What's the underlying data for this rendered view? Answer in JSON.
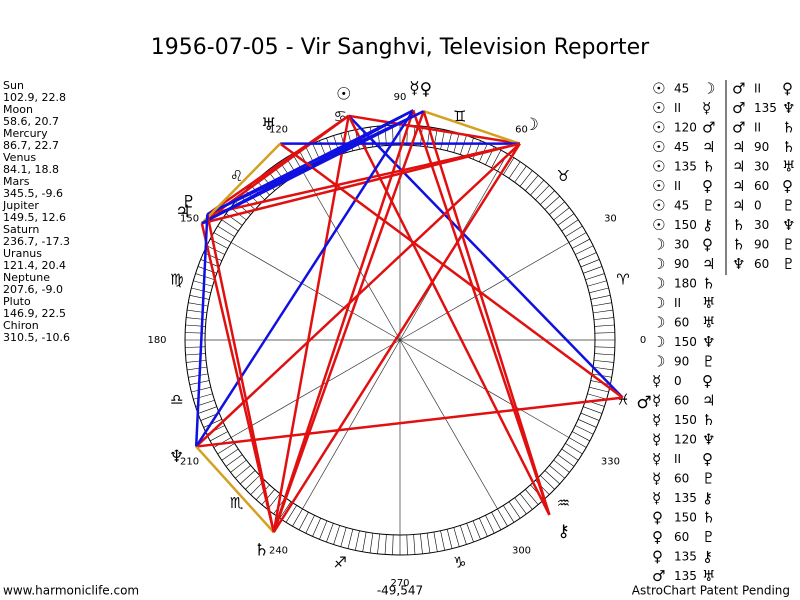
{
  "title": "1956-07-05 - Vir Sanghvi, Television Reporter",
  "bodies": [
    {
      "name": "Sun",
      "glyph": "☉",
      "position": "102.9, 22.8"
    },
    {
      "name": "Moon",
      "glyph": "☽",
      "position": "58.6, 20.7"
    },
    {
      "name": "Mercury",
      "glyph": "☿",
      "position": "86.7, 22.7"
    },
    {
      "name": "Venus",
      "glyph": "♀",
      "position": "84.1, 18.8"
    },
    {
      "name": "Mars",
      "glyph": "♂",
      "position": "345.5, -9.6"
    },
    {
      "name": "Jupiter",
      "glyph": "♃",
      "position": "149.5, 12.6"
    },
    {
      "name": "Saturn",
      "glyph": "♄",
      "position": "236.7, -17.3"
    },
    {
      "name": "Uranus",
      "glyph": "♅",
      "position": "121.4, 20.4"
    },
    {
      "name": "Neptune",
      "glyph": "♆",
      "position": "207.6, -9.0"
    },
    {
      "name": "Pluto",
      "glyph": "♇",
      "position": "146.9, 22.5"
    },
    {
      "name": "Chiron",
      "glyph": "⚷",
      "position": "310.5, -10.6"
    }
  ],
  "signs": [
    "♈",
    "♉",
    "♊",
    "♋",
    "♌",
    "♍",
    "♎",
    "♏",
    "♐",
    "♑",
    "♒",
    "♓"
  ],
  "degree_labels": [
    0,
    30,
    60,
    90,
    120,
    150,
    180,
    210,
    240,
    270,
    300,
    330
  ],
  "aspect_columns": [
    [
      [
        "☉",
        "45",
        "☽"
      ],
      [
        "☉",
        "II",
        "☿"
      ],
      [
        "☉",
        "120",
        "♂"
      ],
      [
        "☉",
        "45",
        "♃"
      ],
      [
        "☉",
        "135",
        "♄"
      ],
      [
        "☉",
        "II",
        "♀"
      ],
      [
        "☉",
        "45",
        "♇"
      ],
      [
        "☉",
        "150",
        "⚷"
      ],
      [
        "☽",
        "30",
        "♀"
      ],
      [
        "☽",
        "90",
        "♃"
      ],
      [
        "☽",
        "180",
        "♄"
      ],
      [
        "☽",
        "II",
        "♅"
      ],
      [
        "☽",
        "60",
        "♅"
      ],
      [
        "☽",
        "150",
        "♆"
      ],
      [
        "☽",
        "90",
        "♇"
      ],
      [
        "☿",
        "0",
        "♀"
      ],
      [
        "☿",
        "60",
        "♃"
      ],
      [
        "☿",
        "150",
        "♄"
      ],
      [
        "☿",
        "120",
        "♆"
      ],
      [
        "☿",
        "II",
        "♀"
      ],
      [
        "☿",
        "60",
        "♇"
      ],
      [
        "☿",
        "135",
        "⚷"
      ],
      [
        "♀",
        "150",
        "♄"
      ],
      [
        "♀",
        "60",
        "♇"
      ],
      [
        "♀",
        "135",
        "⚷"
      ],
      [
        "♂",
        "135",
        "♅"
      ]
    ],
    [
      [
        "♂",
        "II",
        "♀"
      ],
      [
        "♂",
        "135",
        "♆"
      ],
      [
        "♂",
        "II",
        "♄"
      ],
      [
        "♃",
        "90",
        "♄"
      ],
      [
        "♃",
        "30",
        "♅"
      ],
      [
        "♃",
        "60",
        "♀"
      ],
      [
        "♃",
        "0",
        "♇"
      ],
      [
        "♄",
        "30",
        "♆"
      ],
      [
        "♄",
        "90",
        "♇"
      ],
      [
        "♆",
        "60",
        "♇"
      ]
    ]
  ],
  "footer": {
    "site": "www.harmoniclife.com",
    "number": "-49,547",
    "notice": "AstroChart Patent Pending"
  }
}
